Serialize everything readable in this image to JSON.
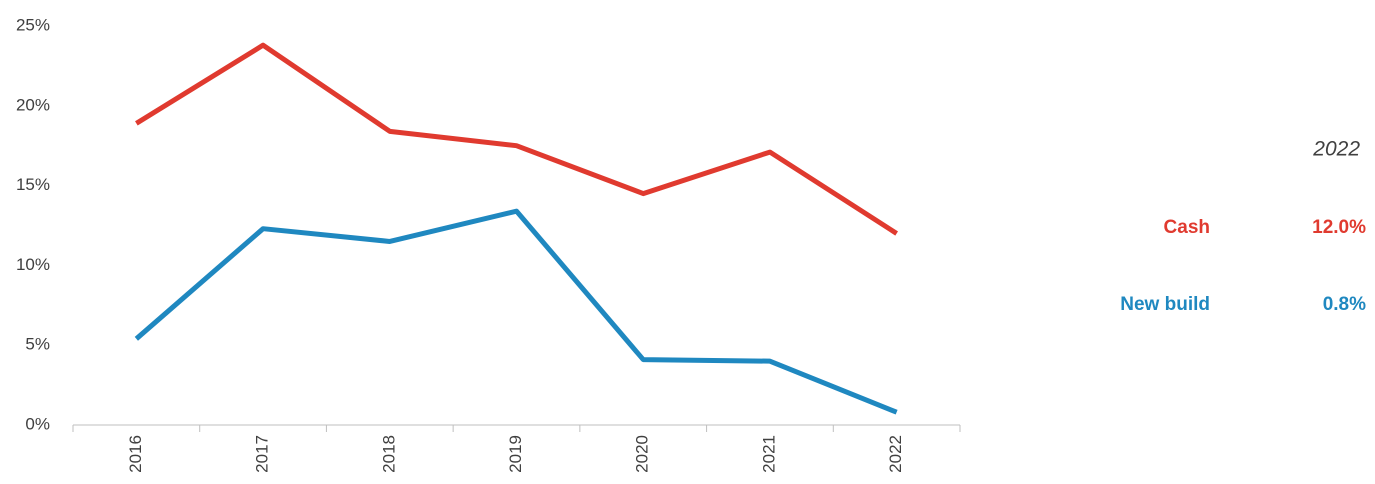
{
  "chart_data": {
    "type": "line",
    "categories": [
      "2016",
      "2017",
      "2018",
      "2019",
      "2020",
      "2021",
      "2022"
    ],
    "series": [
      {
        "name": "Cash",
        "color": "#e03a2f",
        "values": [
          18.9,
          23.8,
          18.4,
          17.5,
          14.5,
          17.1,
          12.0
        ],
        "value_labels": [
          null,
          null,
          null,
          null,
          null,
          null,
          "12.0%"
        ]
      },
      {
        "name": "New build",
        "color": "#1f88c0",
        "values": [
          5.4,
          12.3,
          11.5,
          13.4,
          4.1,
          4.0,
          0.8
        ],
        "value_labels": [
          null,
          null,
          null,
          null,
          null,
          null,
          "0.8%"
        ]
      }
    ],
    "ylim": [
      0,
      25
    ],
    "yticks": [
      {
        "value": 0,
        "label": "0%"
      },
      {
        "value": 5,
        "label": "5%"
      },
      {
        "value": 10,
        "label": "10%"
      },
      {
        "value": 15,
        "label": "15%"
      },
      {
        "value": 20,
        "label": "20%"
      },
      {
        "value": 25,
        "label": "25%"
      }
    ],
    "grid": false
  }
}
